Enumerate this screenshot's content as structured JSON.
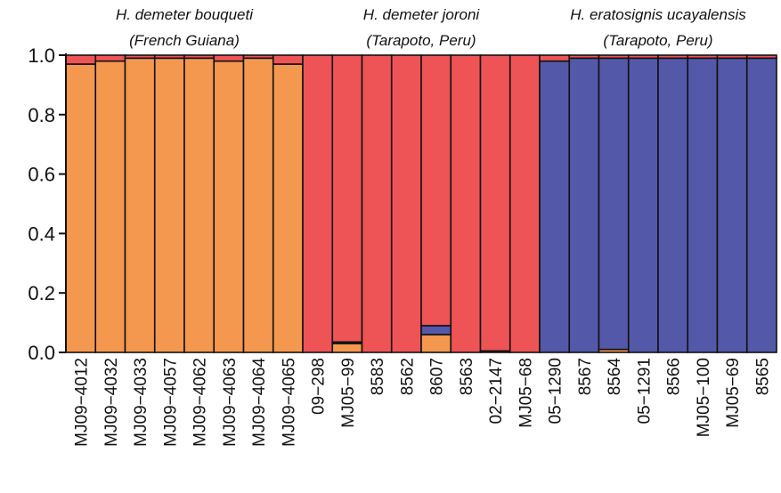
{
  "chart_data": {
    "type": "bar",
    "stacked": true,
    "ylim": [
      0,
      1
    ],
    "yticks": [
      "0.0",
      "0.2",
      "0.4",
      "0.6",
      "0.8",
      "1.0"
    ],
    "colors": {
      "orange": "#F4984F",
      "red": "#EE5455",
      "blue": "#5458A8"
    },
    "groups": [
      {
        "line1": "H. demeter bouqueti",
        "line2": "(French Guiana)",
        "start": 0,
        "end": 7
      },
      {
        "line1": "H. demeter joroni",
        "line2": "(Tarapoto, Peru)",
        "start": 8,
        "end": 15
      },
      {
        "line1": "H. eratosignis ucayalensis",
        "line2": "(Tarapoto, Peru)",
        "start": 16,
        "end": 23
      }
    ],
    "categories": [
      "MJ09-4012",
      "MJ09-4032",
      "MJ09-4033",
      "MJ09-4057",
      "MJ09-4062",
      "MJ09-4063",
      "MJ09-4064",
      "MJ09-4065",
      "09-298",
      "MJ05-99",
      "8583",
      "8562",
      "8607",
      "8563",
      "02-2147",
      "MJ05-68",
      "05-1290",
      "8567",
      "8564",
      "05-1291",
      "8566",
      "MJ05-100",
      "MJ05-69",
      "8565"
    ],
    "series": [
      {
        "color_key": "orange",
        "values": [
          0.97,
          0.98,
          0.99,
          0.99,
          0.99,
          0.98,
          0.99,
          0.97,
          0.0,
          0.03,
          0.0,
          0.0,
          0.06,
          0.0,
          0.005,
          0.0,
          0.0,
          0.0,
          0.01,
          0.0,
          0.0,
          0.0,
          0.0,
          0.0
        ]
      },
      {
        "color_key": "blue",
        "values": [
          0.0,
          0.0,
          0.0,
          0.0,
          0.0,
          0.0,
          0.0,
          0.0,
          0.0,
          0.005,
          0.0,
          0.0,
          0.03,
          0.0,
          0.0,
          0.0,
          0.98,
          0.99,
          0.98,
          0.99,
          0.99,
          0.99,
          0.99,
          0.99
        ]
      },
      {
        "color_key": "red",
        "values": [
          0.03,
          0.02,
          0.01,
          0.01,
          0.01,
          0.02,
          0.01,
          0.03,
          1.0,
          0.965,
          1.0,
          1.0,
          0.91,
          1.0,
          0.995,
          1.0,
          0.02,
          0.01,
          0.01,
          0.01,
          0.01,
          0.01,
          0.01,
          0.01
        ]
      }
    ]
  }
}
